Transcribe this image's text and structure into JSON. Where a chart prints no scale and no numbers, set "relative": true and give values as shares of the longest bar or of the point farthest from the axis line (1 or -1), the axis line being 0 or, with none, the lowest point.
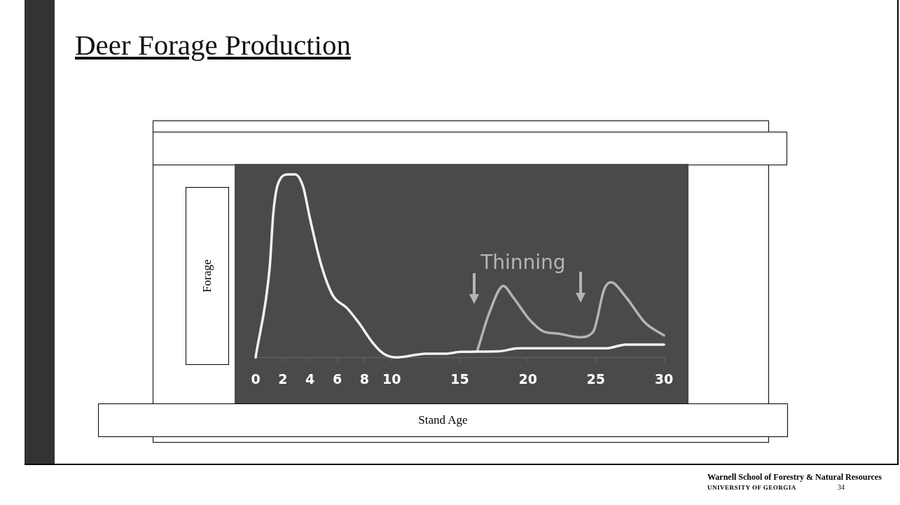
{
  "chart_data": {
    "type": "line",
    "title": "Deer Forage Production",
    "xlabel": "Stand Age",
    "ylabel": "Forage",
    "relative": true,
    "xlim": [
      0,
      30
    ],
    "xticks": [
      0,
      2,
      4,
      6,
      8,
      10,
      15,
      20,
      25,
      30
    ],
    "grid": false,
    "legend": false,
    "marker": "none",
    "line_style": "solid",
    "annotations": [
      "Thinning",
      "Warnell School of Forestry & Natural Resources",
      "UNIVERSITY OF GEORGIA",
      "34"
    ],
    "series": [
      {
        "color": "#f2f2f2",
        "x": [
          0,
          1.03,
          1.3,
          1.65,
          2.4,
          2.9,
          3.5,
          3.96,
          4.8,
          5.66,
          6.7,
          7.57,
          8.6,
          9.4,
          10.4,
          12.5,
          13.9,
          15.1,
          17.9,
          19.3,
          25.8,
          27.2,
          30
        ],
        "values": [
          0,
          0.49,
          0.79,
          0.95,
          1,
          1,
          0.93,
          0.77,
          0.51,
          0.34,
          0.27,
          0.19,
          0.08,
          0.02,
          0,
          0.02,
          0.02,
          0.03,
          0.033,
          0.05,
          0.05,
          0.07,
          0.07
        ]
      },
      {
        "color": "#b4b4b4",
        "x": [
          16.3,
          17.2,
          18.2,
          18.9,
          20.2,
          21.2,
          22.2,
          23.8,
          24.8,
          25.6,
          26.1,
          27.2,
          28.6,
          30
        ],
        "values": [
          0.04,
          0.25,
          0.39,
          0.33,
          0.2,
          0.14,
          0.13,
          0.11,
          0.14,
          0.37,
          0.41,
          0.33,
          0.19,
          0.12
        ]
      }
    ]
  }
}
